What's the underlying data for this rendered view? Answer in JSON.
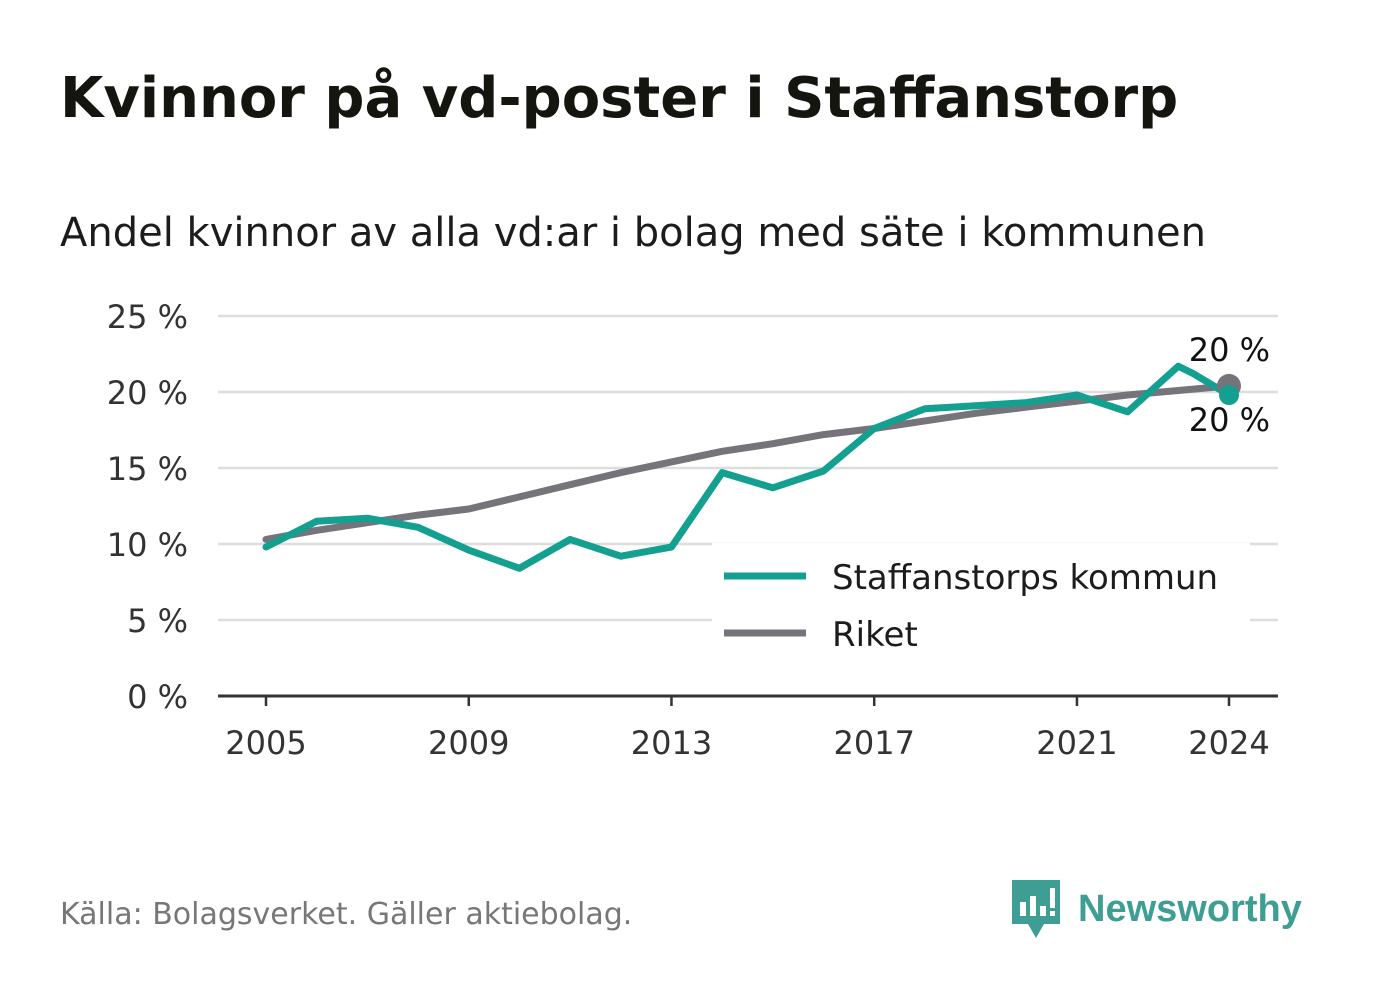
{
  "title": "Kvinnor på vd-poster i Staffanstorp",
  "subtitle": "Andel kvinnor av alla vd:ar i bolag med säte i kommunen",
  "source": "Källa: Bolagsverket. Gäller aktiebolag.",
  "brand": "Newsworthy",
  "colors": {
    "staffanstorp": "#14a090",
    "riket": "#76737b",
    "grid": "#dddddd",
    "axis": "#333333",
    "brand": "#3e9e94"
  },
  "chart_data": {
    "type": "line",
    "title": "Kvinnor på vd-poster i Staffanstorp",
    "subtitle": "Andel kvinnor av alla vd:ar i bolag med säte i kommunen",
    "xlabel": "",
    "ylabel": "",
    "x_ticks": [
      2005,
      2009,
      2013,
      2017,
      2021,
      2024
    ],
    "x_tick_labels": [
      "2005",
      "2009",
      "2013",
      "2017",
      "2021",
      "2024"
    ],
    "y_ticks": [
      0,
      5,
      10,
      15,
      20,
      25
    ],
    "y_tick_labels": [
      "0 %",
      "5 %",
      "10 %",
      "15 %",
      "20 %",
      "25 %"
    ],
    "xlim": [
      2004,
      2025
    ],
    "ylim": [
      0,
      25
    ],
    "grid": "horizontal",
    "legend_position": "bottom-right",
    "x": [
      2005,
      2006,
      2007,
      2008,
      2009,
      2010,
      2011,
      2012,
      2013,
      2014,
      2015,
      2016,
      2017,
      2018,
      2019,
      2020,
      2021,
      2022,
      2023,
      2023.3,
      2024
    ],
    "series": [
      {
        "name": "Staffanstorps kommun",
        "color": "#14a090",
        "x": [
          2005,
          2006,
          2007,
          2008,
          2009,
          2010,
          2011,
          2012,
          2013,
          2014,
          2015,
          2016,
          2017,
          2018,
          2019,
          2020,
          2021,
          2022,
          2023,
          2023.3,
          2024
        ],
        "values": [
          9.8,
          11.5,
          11.7,
          11.1,
          9.6,
          8.4,
          10.3,
          9.2,
          9.8,
          14.7,
          13.7,
          14.8,
          17.6,
          18.9,
          19.1,
          19.3,
          19.8,
          18.7,
          21.7,
          21.2,
          19.8
        ]
      },
      {
        "name": "Riket",
        "color": "#76737b",
        "x": [
          2005,
          2006,
          2007,
          2008,
          2009,
          2010,
          2011,
          2012,
          2013,
          2014,
          2015,
          2016,
          2017,
          2018,
          2019,
          2020,
          2021,
          2022,
          2023,
          2024
        ],
        "values": [
          10.3,
          10.9,
          11.4,
          11.9,
          12.3,
          13.1,
          13.9,
          14.7,
          15.4,
          16.1,
          16.6,
          17.2,
          17.6,
          18.1,
          18.6,
          19.0,
          19.4,
          19.8,
          20.1,
          20.4
        ]
      }
    ],
    "end_labels": [
      {
        "series": "Riket",
        "text": "20 %"
      },
      {
        "series": "Staffanstorps kommun",
        "text": "20 %"
      }
    ]
  }
}
